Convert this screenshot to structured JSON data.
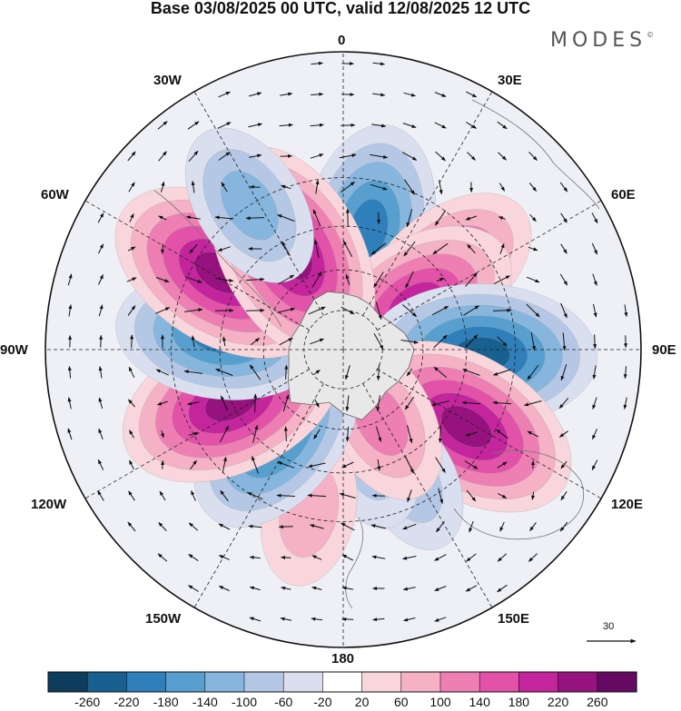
{
  "title": "Base 03/08/2025 00 UTC, valid 12/08/2025 12 UTC",
  "brand": {
    "name": "MODES",
    "mark": "©"
  },
  "longitude_labels": {
    "lon_0": "0",
    "lon_30e": "30E",
    "lon_60e": "60E",
    "lon_90e": "90E",
    "lon_120e": "120E",
    "lon_150e": "150E",
    "lon_180": "180",
    "lon_150w": "150W",
    "lon_120w": "120W",
    "lon_90w": "90W",
    "lon_60w": "60W",
    "lon_30w": "30W"
  },
  "reference_vector": {
    "value": "30"
  },
  "colorbar": {
    "ticks": [
      "-260",
      "-220",
      "-180",
      "-140",
      "-100",
      "-60",
      "-20",
      "20",
      "60",
      "100",
      "140",
      "180",
      "220",
      "260"
    ],
    "colors": [
      "#0d3c5c",
      "#18608f",
      "#2f7fba",
      "#579fcf",
      "#86b6dd",
      "#b4c8e6",
      "#dadff0",
      "#ffffff",
      "#f8d6dc",
      "#f5b1c6",
      "#ee7fb3",
      "#e252a8",
      "#c4249c",
      "#96127e",
      "#650a63"
    ]
  },
  "chart_data": {
    "type": "heatmap",
    "projection": "south polar stereographic",
    "field": "geopotential height anomaly with wind vectors",
    "units_levels": [
      -260,
      -220,
      -180,
      -140,
      -100,
      -60,
      -20,
      20,
      60,
      100,
      140,
      180,
      220,
      260
    ],
    "anomaly_centers": [
      {
        "lon": 12,
        "lat": -45,
        "sign": "negative",
        "peak": -180
      },
      {
        "lon": 52,
        "lat": -42,
        "sign": "positive",
        "peak": 140
      },
      {
        "lon": 58,
        "lat": -58,
        "sign": "positive",
        "peak": 200
      },
      {
        "lon": 92,
        "lat": -40,
        "sign": "negative",
        "peak": -220
      },
      {
        "lon": 122,
        "lat": -38,
        "sign": "positive",
        "peak": 220
      },
      {
        "lon": 153,
        "lat": -38,
        "sign": "negative",
        "peak": -60
      },
      {
        "lon": 165,
        "lat": -50,
        "sign": "negative",
        "peak": -60
      },
      {
        "lon": 152,
        "lat": -60,
        "sign": "positive",
        "peak": 100
      },
      {
        "lon": -168,
        "lat": -32,
        "sign": "positive",
        "peak": 60
      },
      {
        "lon": -142,
        "lat": -50,
        "sign": "negative",
        "peak": -180
      },
      {
        "lon": -115,
        "lat": -45,
        "sign": "positive",
        "peak": 240
      },
      {
        "lon": -83,
        "lat": -45,
        "sign": "negative",
        "peak": -180
      },
      {
        "lon": -58,
        "lat": -38,
        "sign": "positive",
        "peak": 220
      },
      {
        "lon": -28,
        "lat": -50,
        "sign": "positive",
        "peak": 240
      },
      {
        "lon": -33,
        "lat": -30,
        "sign": "negative",
        "peak": -100
      }
    ]
  }
}
